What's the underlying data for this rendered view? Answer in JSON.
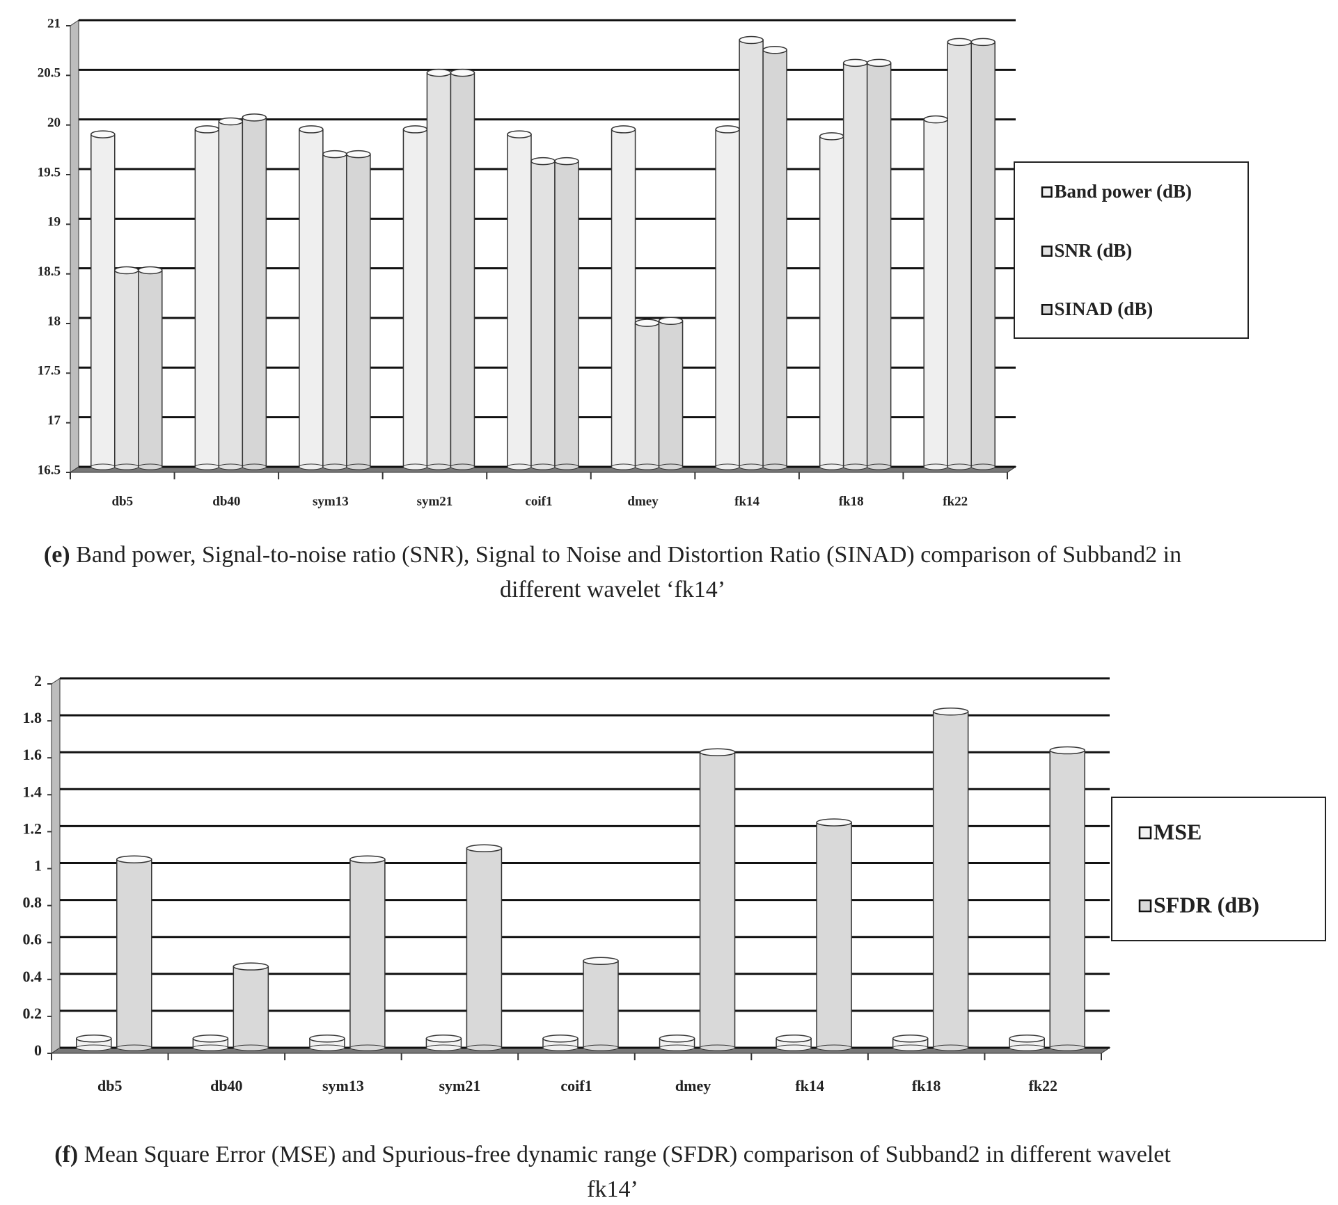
{
  "chart_data": [
    {
      "type": "bar",
      "caption_label": "(e)",
      "caption": "Band power, Signal-to-noise ratio (SNR), Signal to Noise and Distortion Ratio (SINAD) comparison of Subband2 in different wavelet ‘fk14’",
      "categories": [
        "db5",
        "db40",
        "sym13",
        "sym21",
        "coif1",
        "dmey",
        "fk14",
        "fk18",
        "fk22"
      ],
      "series": [
        {
          "name": "Band power (dB)",
          "color": "#efefef",
          "values": [
            19.85,
            19.9,
            19.9,
            19.9,
            19.85,
            19.9,
            19.9,
            19.83,
            20.0
          ]
        },
        {
          "name": "SNR (dB)",
          "color": "#e2e2e2",
          "values": [
            18.48,
            19.98,
            19.65,
            20.47,
            19.58,
            17.95,
            20.8,
            20.57,
            20.78
          ]
        },
        {
          "name": "SINAD (dB)",
          "color": "#d6d6d6",
          "values": [
            18.48,
            20.02,
            19.65,
            20.47,
            19.58,
            17.97,
            20.7,
            20.57,
            20.78
          ]
        }
      ],
      "ylim": [
        16.5,
        21
      ],
      "yticks": [
        16.5,
        17,
        17.5,
        18,
        18.5,
        19,
        19.5,
        20,
        20.5,
        21
      ],
      "grid": true,
      "legend": "right"
    },
    {
      "type": "bar",
      "caption_label": "(f)",
      "caption": "Mean Square Error (MSE) and Spurious-free dynamic range (SFDR) comparison of Subband2 in different wavelet fk14’",
      "categories": [
        "db5",
        "db40",
        "sym13",
        "sym21",
        "coif1",
        "dmey",
        "fk14",
        "fk18",
        "fk22"
      ],
      "series": [
        {
          "name": "MSE",
          "color": "#f2f2f2",
          "values": [
            0.05,
            0.05,
            0.05,
            0.05,
            0.05,
            0.05,
            0.05,
            0.05,
            0.05
          ]
        },
        {
          "name": "SFDR (dB)",
          "color": "#d9d9d9",
          "values": [
            1.02,
            0.44,
            1.02,
            1.08,
            0.47,
            1.6,
            1.22,
            1.82,
            1.61
          ]
        }
      ],
      "ylim": [
        0,
        2
      ],
      "yticks": [
        0,
        0.2,
        0.4,
        0.6,
        0.8,
        1,
        1.2,
        1.4,
        1.6,
        1.8,
        2
      ],
      "grid": true,
      "legend": "right"
    }
  ]
}
